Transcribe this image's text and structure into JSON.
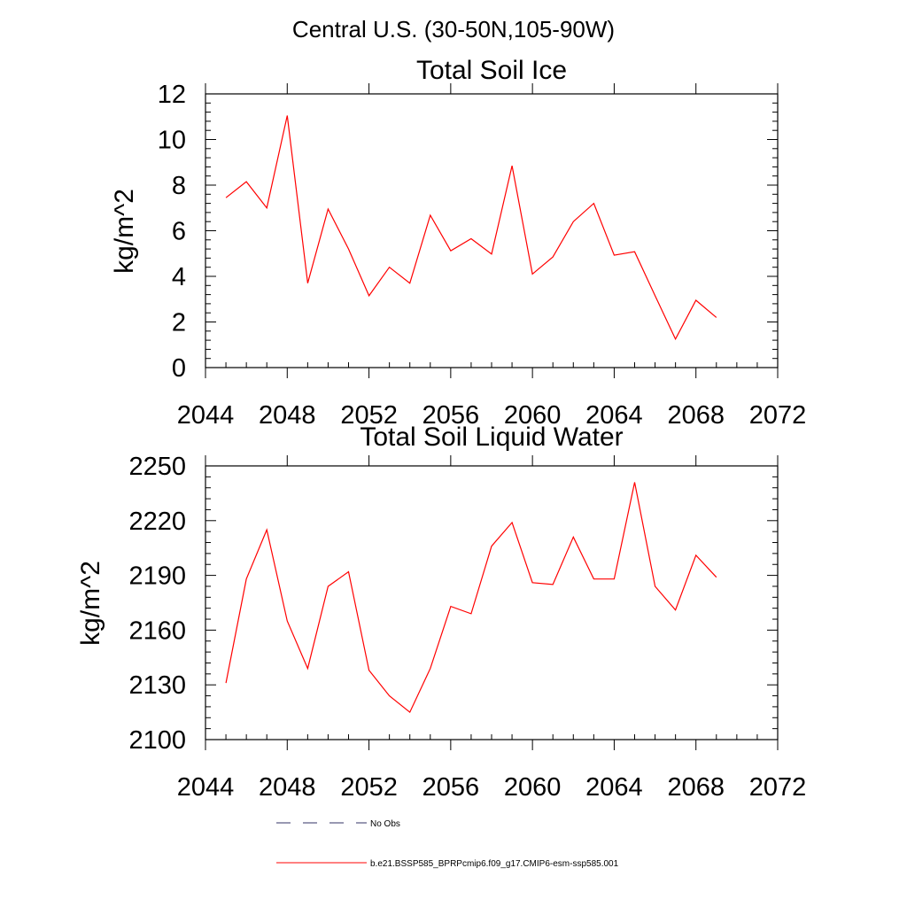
{
  "figure": {
    "main_title": "Central U.S. (30-50N,105-90W)"
  },
  "chart_data": [
    {
      "type": "line",
      "title": "Total Soil Ice",
      "xlabel": "",
      "ylabel": "kg/m^2",
      "xlim": [
        2044,
        2072
      ],
      "ylim": [
        0,
        12
      ],
      "xticks": [
        2044,
        2048,
        2052,
        2056,
        2060,
        2064,
        2068,
        2072
      ],
      "yticks": [
        0,
        2,
        4,
        6,
        8,
        10,
        12
      ],
      "grid": false,
      "x": [
        2045,
        2046,
        2047,
        2048,
        2049,
        2050,
        2051,
        2052,
        2053,
        2054,
        2055,
        2056,
        2057,
        2058,
        2059,
        2060,
        2061,
        2062,
        2063,
        2064,
        2065,
        2066,
        2067,
        2068,
        2069
      ],
      "series": [
        {
          "name": "b.e21.BSSP585_BPRPcmip6.f09_g17.CMIP6-esm-ssp585.001",
          "color": "#ff0000",
          "values": [
            7.45,
            8.15,
            7.0,
            11.05,
            3.7,
            6.95,
            5.2,
            3.15,
            4.4,
            3.7,
            6.68,
            5.12,
            5.65,
            4.98,
            8.85,
            4.1,
            4.85,
            6.4,
            7.2,
            4.93,
            5.08,
            3.15,
            1.25,
            2.95,
            2.2
          ]
        }
      ]
    },
    {
      "type": "line",
      "title": "Total Soil Liquid Water",
      "xlabel": "",
      "ylabel": "kg/m^2",
      "xlim": [
        2044,
        2072
      ],
      "ylim": [
        2100,
        2250
      ],
      "xticks": [
        2044,
        2048,
        2052,
        2056,
        2060,
        2064,
        2068,
        2072
      ],
      "yticks": [
        2100,
        2130,
        2160,
        2190,
        2220,
        2250
      ],
      "grid": false,
      "x": [
        2045,
        2046,
        2047,
        2048,
        2049,
        2050,
        2051,
        2052,
        2053,
        2054,
        2055,
        2056,
        2057,
        2058,
        2059,
        2060,
        2061,
        2062,
        2063,
        2064,
        2065,
        2066,
        2067,
        2068,
        2069
      ],
      "series": [
        {
          "name": "b.e21.BSSP585_BPRPcmip6.f09_g17.CMIP6-esm-ssp585.001",
          "color": "#ff0000",
          "values": [
            2131,
            2188,
            2215,
            2165,
            2139,
            2184,
            2192,
            2138,
            2124,
            2115,
            2139,
            2173,
            2169,
            2206,
            2219,
            2186,
            2185,
            2211,
            2188,
            2188,
            2241,
            2184,
            2171,
            2201,
            2189
          ]
        }
      ]
    }
  ],
  "legend": {
    "placement": "bottom-left",
    "entries": [
      {
        "label": "No Obs",
        "style": "dashed",
        "color": "#333366"
      },
      {
        "label": "b.e21.BSSP585_BPRPcmip6.f09_g17.CMIP6-esm-ssp585.001",
        "style": "solid",
        "color": "#ff0000"
      }
    ]
  }
}
